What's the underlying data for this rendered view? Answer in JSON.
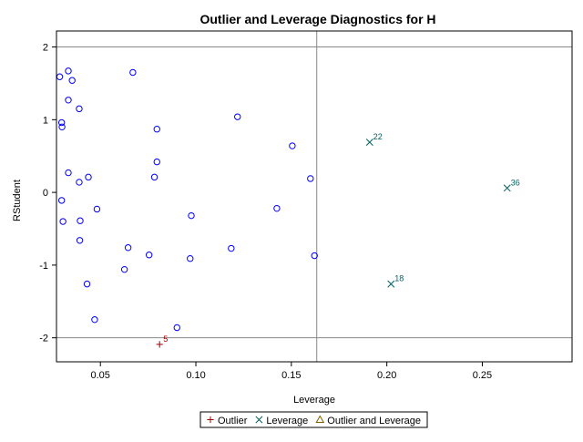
{
  "chart_data": {
    "type": "scatter",
    "title": "Outlier and Leverage Diagnostics for H",
    "xlabel": "Leverage",
    "ylabel": "RStudent",
    "xlim": [
      0.027,
      0.297
    ],
    "ylim": [
      -2.33,
      2.22
    ],
    "xticks": [
      0.05,
      0.1,
      0.15,
      0.2,
      0.25
    ],
    "xtick_labels": [
      "0.05",
      "0.10",
      "0.15",
      "0.20",
      "0.25"
    ],
    "yticks": [
      -2,
      -1,
      0,
      1,
      2
    ],
    "ytick_labels": [
      "-2",
      "-1",
      "0",
      "1",
      "2"
    ],
    "reference_lines": {
      "x": [
        0.1633
      ],
      "y": [
        -2,
        2
      ]
    },
    "grid": false,
    "legend_position": "bottom",
    "colors": {
      "normal": "#0000ff",
      "outlier": "#a00000",
      "leverage": "#006060",
      "both": "#806000",
      "reference": "#888888",
      "axis": "#000000"
    },
    "legend": [
      {
        "marker": "plus",
        "label": "Outlier",
        "color": "#a00000"
      },
      {
        "marker": "x",
        "label": "Leverage",
        "color": "#006060"
      },
      {
        "marker": "triangle",
        "label": "Outlier and Leverage",
        "color": "#806000"
      }
    ],
    "series": [
      {
        "marker": "circle",
        "color": "#0000ff",
        "points": [
          [
            0.0287,
            1.59
          ],
          [
            0.0332,
            1.67
          ],
          [
            0.0352,
            1.54
          ],
          [
            0.0332,
            1.27
          ],
          [
            0.0389,
            1.15
          ],
          [
            0.0297,
            0.96
          ],
          [
            0.0299,
            0.9
          ],
          [
            0.0332,
            0.27
          ],
          [
            0.0389,
            0.14
          ],
          [
            0.0437,
            0.21
          ],
          [
            0.0297,
            -0.11
          ],
          [
            0.0304,
            -0.4
          ],
          [
            0.0394,
            -0.39
          ],
          [
            0.0482,
            -0.23
          ],
          [
            0.0392,
            -0.66
          ],
          [
            0.0645,
            -0.76
          ],
          [
            0.0626,
            -1.06
          ],
          [
            0.043,
            -1.26
          ],
          [
            0.047,
            -1.75
          ],
          [
            0.067,
            1.65
          ],
          [
            0.0796,
            0.87
          ],
          [
            0.0796,
            0.42
          ],
          [
            0.0783,
            0.21
          ],
          [
            0.0755,
            -0.86
          ],
          [
            0.0976,
            -0.32
          ],
          [
            0.097,
            -0.91
          ],
          [
            0.0901,
            -1.86
          ],
          [
            0.1218,
            1.04
          ],
          [
            0.1505,
            0.64
          ],
          [
            0.16,
            0.19
          ],
          [
            0.1424,
            -0.22
          ],
          [
            0.1185,
            -0.77
          ],
          [
            0.1621,
            -0.87
          ]
        ]
      },
      {
        "marker": "plus",
        "color": "#a00000",
        "points": [
          [
            0.081,
            -2.09
          ]
        ],
        "labels": [
          "5"
        ]
      },
      {
        "marker": "x",
        "color": "#006060",
        "points": [
          [
            0.191,
            0.69
          ],
          [
            0.2022,
            -1.26
          ],
          [
            0.263,
            0.06
          ]
        ],
        "labels": [
          "22",
          "18",
          "36"
        ]
      }
    ]
  }
}
